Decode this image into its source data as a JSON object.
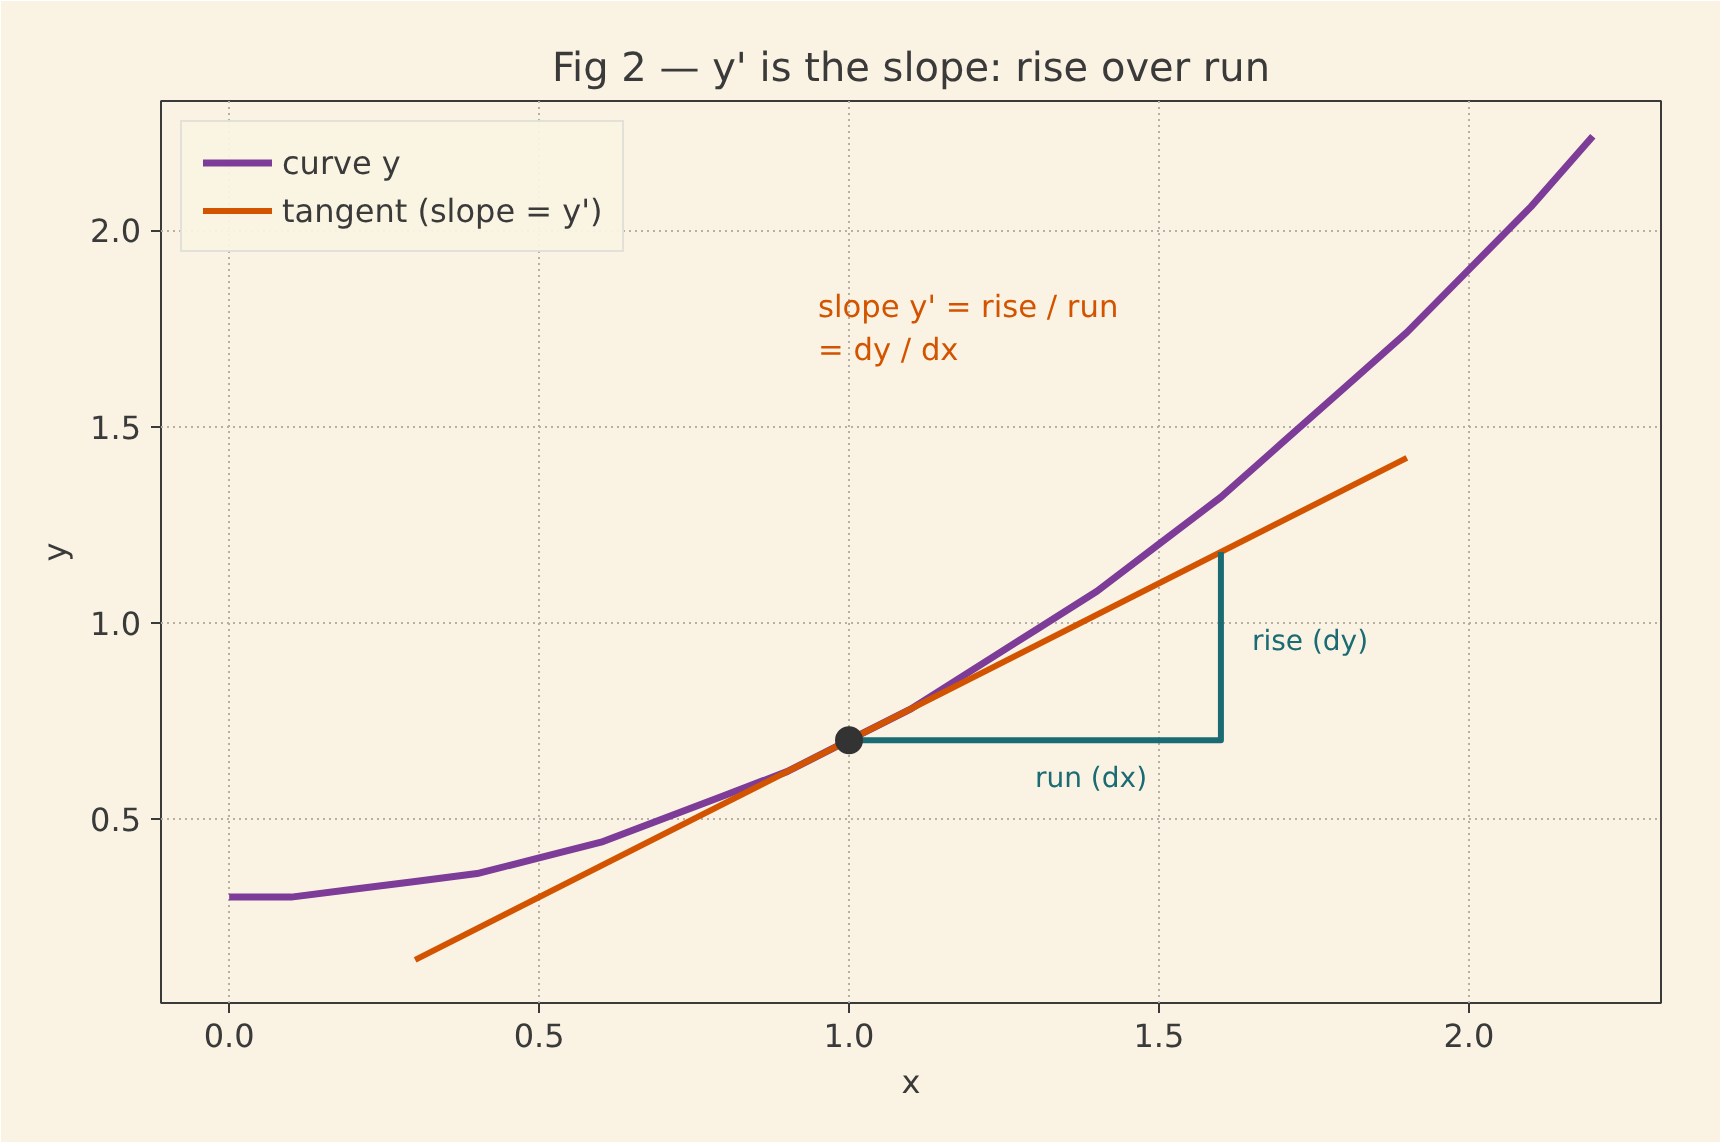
{
  "chart_data": {
    "type": "line",
    "title": "Fig 2 — y' is the slope: rise over run",
    "xlabel": "x",
    "ylabel": "y",
    "xlim": [
      -0.11,
      2.31
    ],
    "ylim": [
      0.03,
      2.33
    ],
    "xticks": [
      {
        "value": 0,
        "label": "0.0"
      },
      0.5,
      {
        "value": 1,
        "label": "1.0"
      },
      1.5,
      {
        "value": 2,
        "label": "2.0"
      }
    ],
    "yticks": [
      0.5,
      {
        "value": 1,
        "label": "1.0"
      },
      1.5,
      {
        "value": 2,
        "label": "2.0"
      }
    ],
    "grid": true,
    "legend": "top left",
    "series": [
      {
        "name": "curve y",
        "color": "#7d3c98",
        "x": [
          0,
          0.1,
          0.2,
          0.3,
          0.4,
          0.5,
          0.6,
          0.7,
          0.8,
          0.9,
          1.0,
          1.1,
          1.2,
          1.3,
          1.4,
          1.5,
          1.6,
          1.7,
          1.8,
          1.9,
          2.0,
          2.1,
          2.2
        ],
        "values": [
          0.3,
          0.3,
          0.32,
          0.34,
          0.36,
          0.4,
          0.44,
          0.5,
          0.56,
          0.62,
          0.7,
          0.78,
          0.88,
          0.98,
          1.08,
          1.2,
          1.32,
          1.46,
          1.6,
          1.74,
          1.9,
          2.06,
          2.24
        ]
      },
      {
        "name": "tangent (slope = y')",
        "color": "#d35400",
        "x": [
          0.3,
          1.9
        ],
        "values": [
          0.14,
          1.42
        ]
      },
      {
        "color": "#1a6b73",
        "x": [
          1.0,
          1.6,
          1.6
        ],
        "values": [
          0.7,
          0.7,
          1.18
        ]
      },
      {
        "type": "scatter",
        "marker": "circle",
        "color": "#333333",
        "x": [
          1.0
        ],
        "values": [
          0.7
        ]
      }
    ],
    "annotations": [
      "slope y' = rise / run\n= dy / dx",
      "run (dx)",
      "rise (dy)"
    ]
  }
}
